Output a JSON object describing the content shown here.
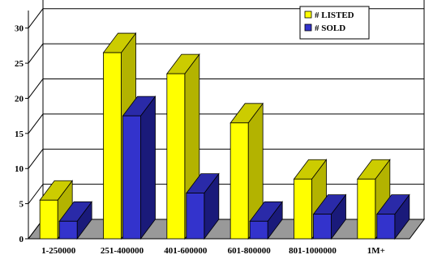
{
  "chart_data": {
    "type": "bar",
    "categories": [
      "1-250000",
      "251-400000",
      "401-600000",
      "601-800000",
      "801-1000000",
      "1M+"
    ],
    "series": [
      {
        "name": "# LISTED",
        "values": [
          5.5,
          26.5,
          23.5,
          16.5,
          8.5,
          8.5
        ],
        "color": "#ffff00",
        "side_color": "#b3b300",
        "top_color": "#cccc00"
      },
      {
        "name": "# SOLD",
        "values": [
          2.5,
          17.5,
          6.5,
          2.5,
          3.5,
          3.5
        ],
        "color": "#3333cc",
        "side_color": "#1a1a7a",
        "top_color": "#2a2aa8"
      }
    ],
    "y_ticks": [
      "0",
      "5",
      "10",
      "15",
      "20",
      "25",
      "30"
    ],
    "ylim": [
      0,
      32.5
    ],
    "grid": true,
    "legend_position": "top-right",
    "three_d": true,
    "floor_color": "#999999"
  }
}
